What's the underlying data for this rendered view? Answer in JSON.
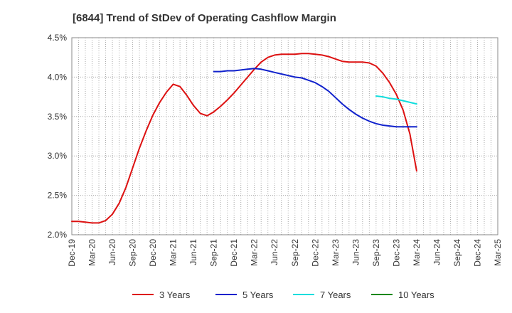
{
  "chart_data": {
    "type": "line",
    "title": "[6844]  Trend of StDev of Operating Cashflow Margin",
    "xlabel": "",
    "ylabel": "",
    "ylim": [
      2.0,
      4.5
    ],
    "y_ticks": [
      "2.0%",
      "2.5%",
      "3.0%",
      "3.5%",
      "4.0%",
      "4.5%"
    ],
    "y_tick_values": [
      2.0,
      2.5,
      3.0,
      3.5,
      4.0,
      4.5
    ],
    "x_ticks": [
      "Dec-19",
      "Mar-20",
      "Jun-20",
      "Sep-20",
      "Dec-20",
      "Mar-21",
      "Jun-21",
      "Sep-21",
      "Dec-21",
      "Mar-22",
      "Jun-22",
      "Sep-22",
      "Dec-22",
      "Mar-23",
      "Jun-23",
      "Sep-23",
      "Dec-23",
      "Mar-24",
      "Jun-24",
      "Sep-24",
      "Dec-24",
      "Mar-25"
    ],
    "grid": true,
    "legend_position": "bottom",
    "series": [
      {
        "name": "3 Years",
        "color": "#dd1111",
        "x": [
          "Dec-19",
          "Jan-20",
          "Feb-20",
          "Mar-20",
          "Apr-20",
          "May-20",
          "Jun-20",
          "Jul-20",
          "Aug-20",
          "Sep-20",
          "Oct-20",
          "Nov-20",
          "Dec-20",
          "Jan-21",
          "Feb-21",
          "Mar-21",
          "Apr-21",
          "May-21",
          "Jun-21",
          "Jul-21",
          "Aug-21",
          "Sep-21",
          "Oct-21",
          "Nov-21",
          "Dec-21",
          "Jan-22",
          "Feb-22",
          "Mar-22",
          "Apr-22",
          "May-22",
          "Jun-22",
          "Jul-22",
          "Aug-22",
          "Sep-22",
          "Oct-22",
          "Nov-22",
          "Dec-22",
          "Jan-23",
          "Feb-23",
          "Mar-23",
          "Apr-23",
          "May-23",
          "Jun-23",
          "Jul-23",
          "Aug-23",
          "Sep-23",
          "Oct-23",
          "Nov-23",
          "Dec-23",
          "Jan-24",
          "Feb-24",
          "Mar-24"
        ],
        "values": [
          2.17,
          2.17,
          2.16,
          2.15,
          2.15,
          2.18,
          2.26,
          2.4,
          2.6,
          2.85,
          3.1,
          3.32,
          3.52,
          3.68,
          3.81,
          3.91,
          3.88,
          3.77,
          3.64,
          3.54,
          3.51,
          3.56,
          3.63,
          3.71,
          3.8,
          3.9,
          4.0,
          4.1,
          4.19,
          4.25,
          4.28,
          4.29,
          4.29,
          4.29,
          4.3,
          4.3,
          4.29,
          4.28,
          4.26,
          4.23,
          4.2,
          4.19,
          4.19,
          4.19,
          4.18,
          4.14,
          4.05,
          3.93,
          3.78,
          3.58,
          3.28,
          2.81
        ]
      },
      {
        "name": "5 Years",
        "color": "#1122cc",
        "x": [
          "Sep-21",
          "Oct-21",
          "Nov-21",
          "Dec-21",
          "Jan-22",
          "Feb-22",
          "Mar-22",
          "Apr-22",
          "May-22",
          "Jun-22",
          "Jul-22",
          "Aug-22",
          "Sep-22",
          "Oct-22",
          "Nov-22",
          "Dec-22",
          "Jan-23",
          "Feb-23",
          "Mar-23",
          "Apr-23",
          "May-23",
          "Jun-23",
          "Jul-23",
          "Aug-23",
          "Sep-23",
          "Oct-23",
          "Nov-23",
          "Dec-23",
          "Jan-24",
          "Feb-24",
          "Mar-24"
        ],
        "values": [
          4.07,
          4.07,
          4.08,
          4.08,
          4.09,
          4.1,
          4.11,
          4.1,
          4.08,
          4.06,
          4.04,
          4.02,
          4.0,
          3.99,
          3.96,
          3.93,
          3.88,
          3.82,
          3.74,
          3.66,
          3.59,
          3.53,
          3.48,
          3.44,
          3.41,
          3.39,
          3.38,
          3.37,
          3.37,
          3.37,
          3.37
        ]
      },
      {
        "name": "7 Years",
        "color": "#11dddd",
        "x": [
          "Sep-23",
          "Oct-23",
          "Nov-23",
          "Dec-23",
          "Jan-24",
          "Feb-24",
          "Mar-24"
        ],
        "values": [
          3.76,
          3.75,
          3.73,
          3.72,
          3.7,
          3.68,
          3.66
        ]
      },
      {
        "name": "10 Years",
        "color": "#118811",
        "x": [],
        "values": []
      }
    ]
  }
}
